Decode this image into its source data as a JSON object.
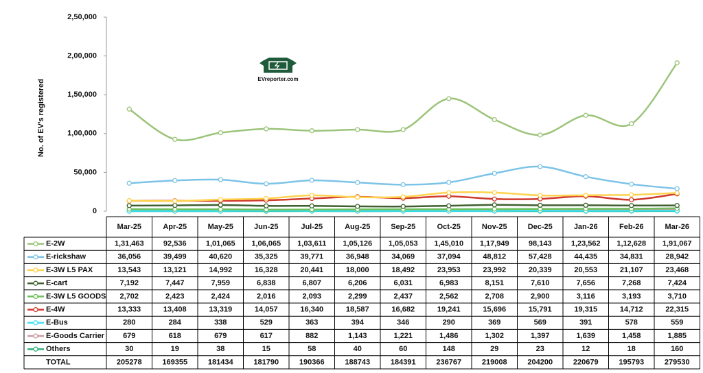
{
  "chart_data": {
    "type": "line",
    "y_label": "No. of EV's registered",
    "watermark": "EVreporter.com",
    "categories": [
      "Mar-25",
      "Apr-25",
      "May-25",
      "Jun-25",
      "Jul-25",
      "Aug-25",
      "Sep-25",
      "Oct-25",
      "Nov-25",
      "Dec-25",
      "Jan-26",
      "Feb-26",
      "Mar-26"
    ],
    "ylim": [
      0,
      250000
    ],
    "yticks": [
      0,
      {
        "value": 50000,
        "label": "50,000"
      },
      {
        "value": 100000,
        "label": "1,00,000"
      },
      {
        "value": 150000,
        "label": "1,50,000"
      },
      {
        "value": 200000,
        "label": "2,00,000"
      },
      {
        "value": 250000,
        "label": "2,50,000"
      }
    ],
    "series": [
      {
        "name": "E-2W",
        "color": "#9bc47a",
        "values": [
          131463,
          92536,
          101065,
          106065,
          103611,
          105126,
          105053,
          145010,
          117949,
          98143,
          123562,
          112628,
          191067
        ],
        "value_labels": [
          "1,31,463",
          "92,536",
          "1,01,065",
          "1,06,065",
          "1,03,611",
          "1,05,126",
          "1,05,053",
          "1,45,010",
          "1,17,949",
          "98,143",
          "1,23,562",
          "1,12,628",
          "1,91,067"
        ]
      },
      {
        "name": "E-rickshaw",
        "color": "#7cc3e8",
        "values": [
          36056,
          39499,
          40620,
          35325,
          39771,
          36948,
          34069,
          37094,
          48812,
          57428,
          44435,
          34831,
          28942
        ],
        "value_labels": [
          "36,056",
          "39,499",
          "40,620",
          "35,325",
          "39,771",
          "36,948",
          "34,069",
          "37,094",
          "48,812",
          "57,428",
          "44,435",
          "34,831",
          "28,942"
        ]
      },
      {
        "name": "E-3W L5 PAX",
        "color": "#ffd24d",
        "values": [
          13543,
          13121,
          14992,
          16328,
          20441,
          18000,
          18492,
          23953,
          23992,
          20339,
          20553,
          21107,
          23468
        ],
        "value_labels": [
          "13,543",
          "13,121",
          "14,992",
          "16,328",
          "20,441",
          "18,000",
          "18,492",
          "23,953",
          "23,992",
          "20,339",
          "20,553",
          "21,107",
          "23,468"
        ]
      },
      {
        "name": "E-cart",
        "color": "#3f5f2e",
        "values": [
          7192,
          7447,
          7959,
          6838,
          6807,
          6206,
          6031,
          6983,
          8151,
          7610,
          7656,
          7268,
          7424
        ],
        "value_labels": [
          "7,192",
          "7,447",
          "7,959",
          "6,838",
          "6,807",
          "6,206",
          "6,031",
          "6,983",
          "8,151",
          "7,610",
          "7,656",
          "7,268",
          "7,424"
        ]
      },
      {
        "name": "E-3W L5 GOODS",
        "color": "#6fbf5a",
        "values": [
          2702,
          2423,
          2424,
          2016,
          2093,
          2299,
          2437,
          2562,
          2708,
          2900,
          3116,
          3193,
          3710
        ],
        "value_labels": [
          "2,702",
          "2,423",
          "2,424",
          "2,016",
          "2,093",
          "2,299",
          "2,437",
          "2,562",
          "2,708",
          "2,900",
          "3,116",
          "3,193",
          "3,710"
        ]
      },
      {
        "name": "E-4W",
        "color": "#d03a2e",
        "values": [
          13333,
          13408,
          13319,
          14057,
          16340,
          18587,
          16682,
          19241,
          15696,
          15791,
          19315,
          14712,
          22315
        ],
        "value_labels": [
          "13,333",
          "13,408",
          "13,319",
          "14,057",
          "16,340",
          "18,587",
          "16,682",
          "19,241",
          "15,696",
          "15,791",
          "19,315",
          "14,712",
          "22,315"
        ]
      },
      {
        "name": "E-Bus",
        "color": "#3fe0f0",
        "values": [
          280,
          284,
          338,
          529,
          363,
          394,
          346,
          290,
          369,
          569,
          391,
          578,
          559
        ]
      },
      {
        "name": "E-Goods Carrier",
        "color": "#c99aa0",
        "values": [
          679,
          618,
          679,
          617,
          882,
          1143,
          1221,
          1486,
          1302,
          1397,
          1639,
          1458,
          1885
        ],
        "value_labels": [
          "679",
          "618",
          "679",
          "617",
          "882",
          "1,143",
          "1,221",
          "1,486",
          "1,302",
          "1,397",
          "1,639",
          "1,458",
          "1,885"
        ]
      },
      {
        "name": "Others",
        "color": "#2fb07a",
        "values": [
          30,
          19,
          38,
          15,
          58,
          40,
          60,
          148,
          29,
          23,
          12,
          18,
          160
        ]
      }
    ],
    "total_label": "TOTAL",
    "totals": [
      205278,
      169355,
      181434,
      181790,
      190366,
      188743,
      184391,
      236767,
      219008,
      204200,
      220679,
      195793,
      279530
    ]
  }
}
